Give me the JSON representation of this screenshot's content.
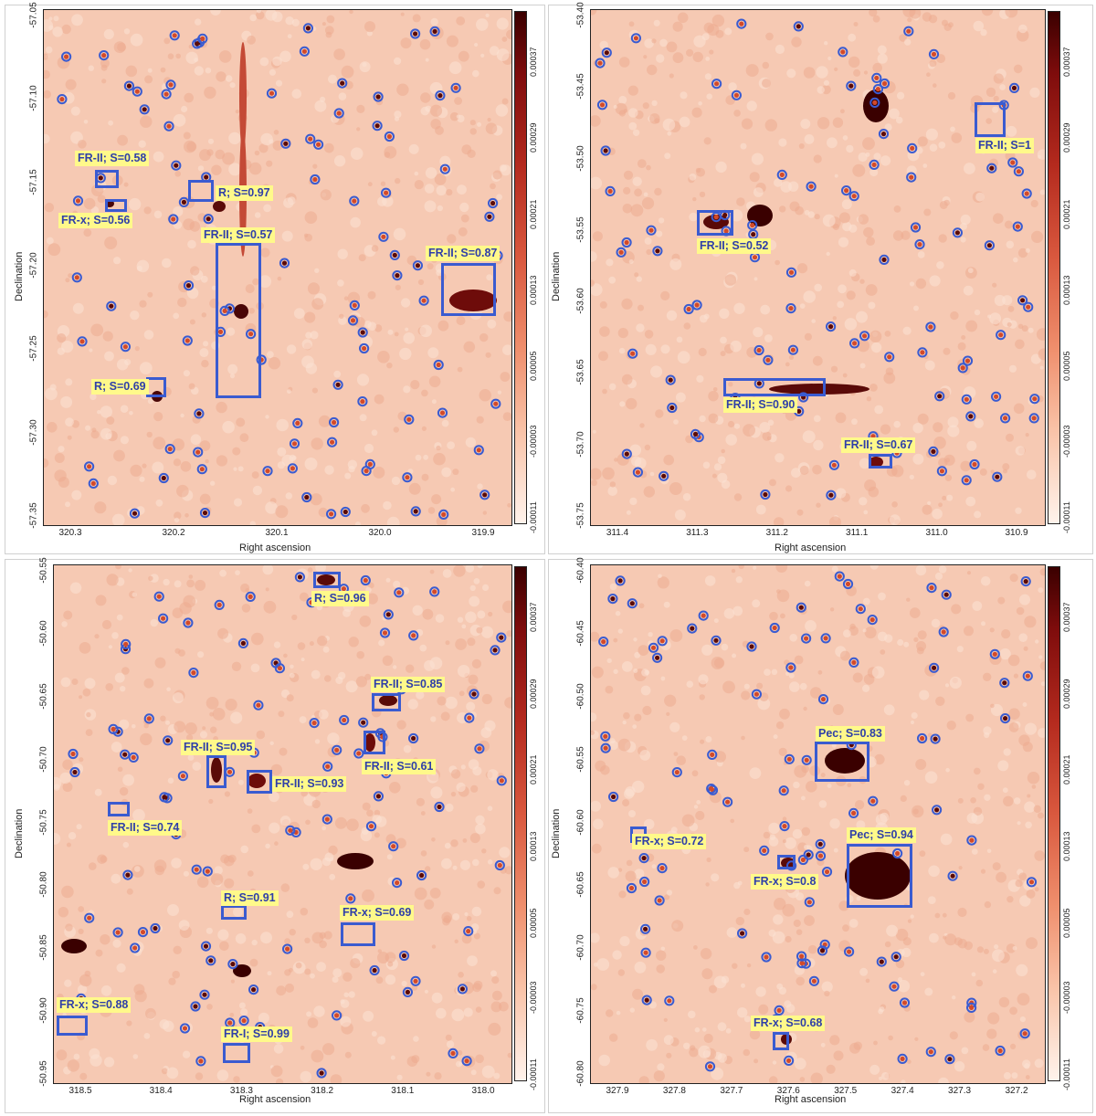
{
  "colorbar_ticks": [
    "0.00037",
    "0.00029",
    "0.00021",
    "0.00013",
    "0.00005",
    "-0.00003",
    "-0.00011"
  ],
  "colors": {
    "box": "#3a5bd0",
    "label_bg": "#fff98a",
    "label_text": "#2f3fa8",
    "source_ring": "#3a5bd0",
    "source_core": "#d24a2a"
  },
  "panels": [
    {
      "id": "tl",
      "xlabel": "Right ascension",
      "ylabel": "Declination",
      "xticks": [
        "320.3",
        "320.2",
        "320.1",
        "320.0",
        "319.9"
      ],
      "yticks": [
        "-57.05",
        "-57.10",
        "-57.15",
        "-57.20",
        "-57.25",
        "-57.30",
        "-57.35"
      ],
      "labels": [
        "FR-II; S=0.58",
        "FR-x; S=0.56",
        "R; S=0.97",
        "FR-II; S=0.57",
        "FR-II; S=0.87",
        "R; S=0.69"
      ]
    },
    {
      "id": "tr",
      "xlabel": "Right ascension",
      "ylabel": "Declination",
      "xticks": [
        "311.4",
        "311.3",
        "311.2",
        "311.1",
        "311.0",
        "310.9"
      ],
      "yticks": [
        "-53.40",
        "-53.45",
        "-53.50",
        "-53.55",
        "-53.60",
        "-53.65",
        "-53.70",
        "-53.75"
      ],
      "labels": [
        "FR-II; S=1",
        "FR-II; S=0.52",
        "FR-II; S=0.90",
        "FR-II; S=0.67"
      ]
    },
    {
      "id": "bl",
      "xlabel": "Right ascension",
      "ylabel": "Declination",
      "xticks": [
        "318.5",
        "318.4",
        "318.3",
        "318.2",
        "318.1",
        "318.0"
      ],
      "yticks": [
        "-50.55",
        "-50.60",
        "-50.65",
        "-50.70",
        "-50.75",
        "-50.80",
        "-50.85",
        "-50.90",
        "-50.95"
      ],
      "labels": [
        "R; S=0.96",
        "FR-II; S=0.85",
        "FR-II; S=0.61",
        "FR-II; S=0.95",
        "FR-II; S=0.93",
        "FR-II; S=0.74",
        "R; S=0.91",
        "FR-x; S=0.69",
        "FR-x; S=0.88",
        "FR-I; S=0.99"
      ]
    },
    {
      "id": "br",
      "xlabel": "Right ascension",
      "ylabel": "Declination",
      "xticks": [
        "327.9",
        "327.8",
        "327.7",
        "327.6",
        "327.5",
        "327.4",
        "327.3",
        "327.2"
      ],
      "yticks": [
        "-60.40",
        "-60.45",
        "-60.50",
        "-60.55",
        "-60.60",
        "-60.65",
        "-60.70",
        "-60.75",
        "-60.80"
      ],
      "labels": [
        "Pec; S=0.83",
        "Pec; S=0.94",
        "FR-x; S=0.72",
        "FR-x; S=0.8",
        "FR-x; S=0.68"
      ]
    }
  ]
}
